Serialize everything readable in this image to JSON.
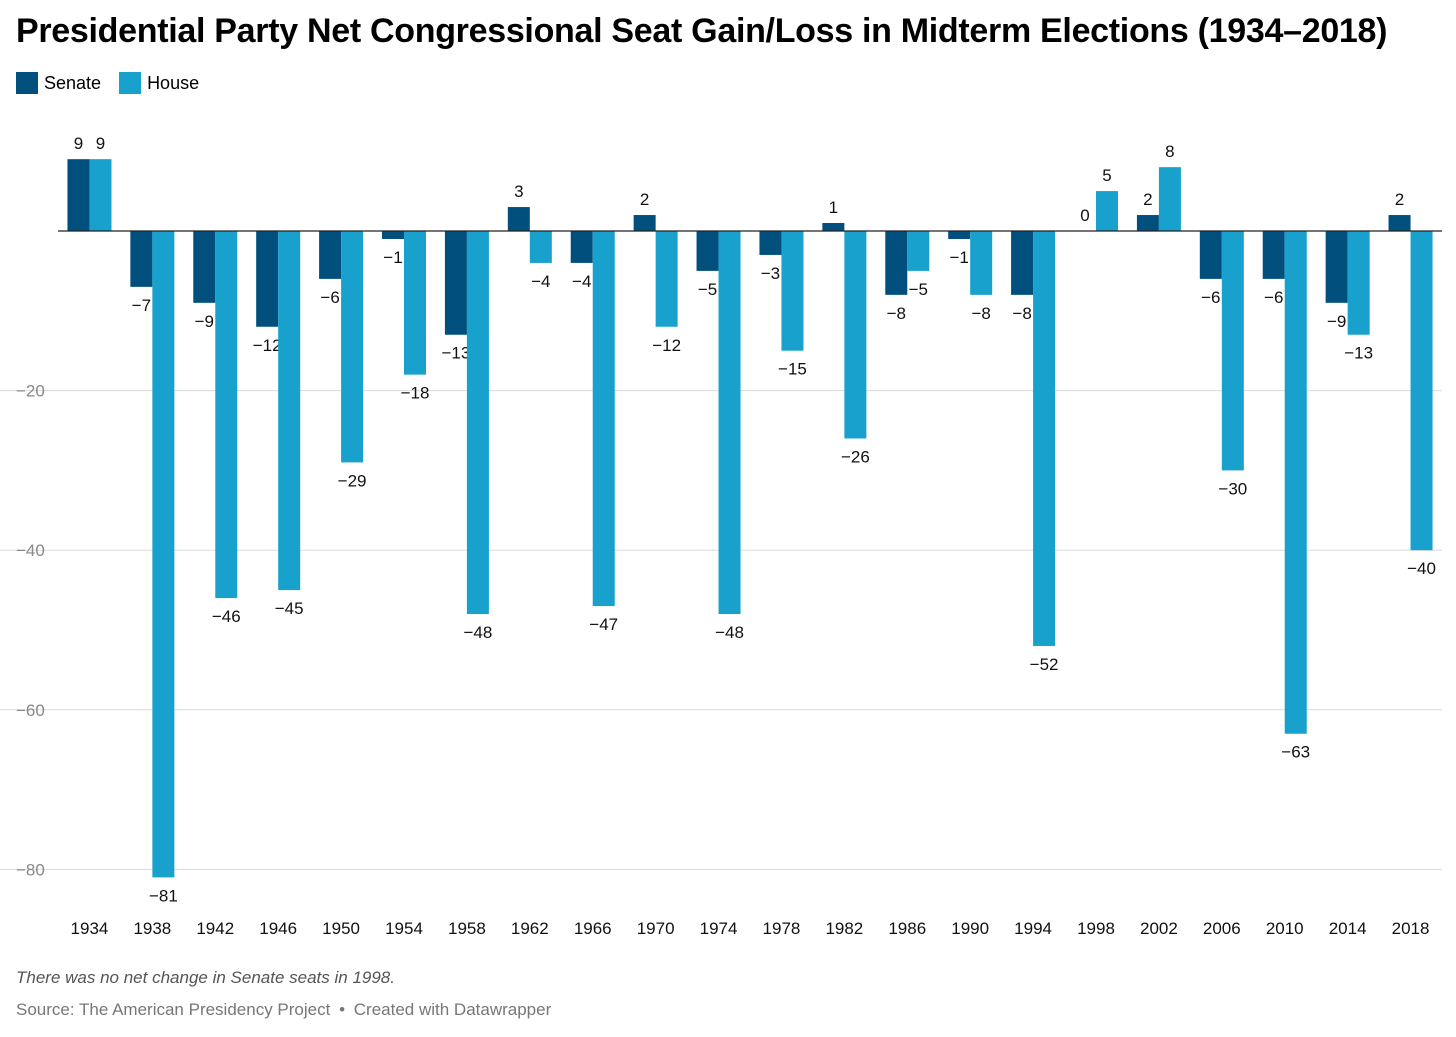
{
  "chart_data": {
    "type": "bar",
    "title": "Presidential Party Net Congressional Seat Gain/Loss in Midterm Elections (1934–2018)",
    "categories": [
      "1934",
      "1938",
      "1942",
      "1946",
      "1950",
      "1954",
      "1958",
      "1962",
      "1966",
      "1970",
      "1974",
      "1978",
      "1982",
      "1986",
      "1990",
      "1994",
      "1998",
      "2002",
      "2006",
      "2010",
      "2014",
      "2018"
    ],
    "series": [
      {
        "name": "Senate",
        "color": "#004f7c",
        "values": [
          9,
          -7,
          -9,
          -12,
          -6,
          -1,
          -13,
          3,
          -4,
          2,
          -5,
          -3,
          1,
          -8,
          -1,
          -8,
          0,
          2,
          -6,
          -6,
          -9,
          2
        ]
      },
      {
        "name": "House",
        "color": "#18a1cd",
        "values": [
          9,
          -81,
          -46,
          -45,
          -29,
          -18,
          -48,
          -4,
          -47,
          -12,
          -48,
          -15,
          -26,
          -5,
          -8,
          -52,
          5,
          8,
          -30,
          -63,
          -13,
          -40
        ]
      }
    ],
    "y_ticks": [
      -20,
      -40,
      -60,
      -80
    ],
    "y_tick_labels": [
      "−20",
      "−40",
      "−60",
      "−80"
    ],
    "ylim": [
      -85,
      12
    ],
    "grid": true,
    "legend_position": "top-left",
    "note": "There was no net change in Senate seats in 1998.",
    "source_label": "Source: The American Presidency Project",
    "credit": "Created with Datawrapper",
    "separator": "•"
  }
}
